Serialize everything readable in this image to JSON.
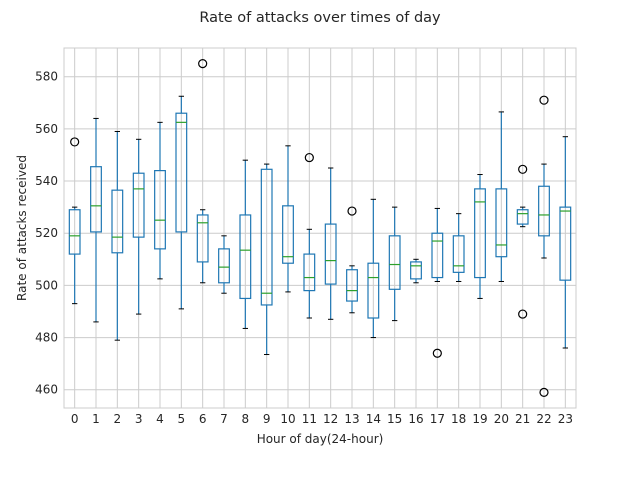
{
  "chart_data": {
    "type": "boxplot",
    "title": "Rate of attacks over times of day",
    "xlabel": "Hour of day(24-hour)",
    "ylabel": "Rate of attacks received",
    "ylim": [
      453,
      591
    ],
    "yticks": [
      460,
      480,
      500,
      520,
      540,
      560,
      580
    ],
    "grid": true,
    "colors": {
      "box": "#1f77b4",
      "median": "#2ca02c",
      "flier": "#000000",
      "grid": "#cccccc",
      "frame": "#cccccc"
    },
    "categories": [
      "0",
      "1",
      "2",
      "3",
      "4",
      "5",
      "6",
      "7",
      "8",
      "9",
      "10",
      "11",
      "12",
      "13",
      "14",
      "15",
      "16",
      "17",
      "18",
      "19",
      "20",
      "21",
      "22",
      "23"
    ],
    "boxes": [
      {
        "label": "0",
        "whislo": 493,
        "q1": 512,
        "med": 519,
        "q3": 529,
        "whishi": 530,
        "fliers": [
          555
        ]
      },
      {
        "label": "1",
        "whislo": 486,
        "q1": 520.5,
        "med": 530.5,
        "q3": 545.5,
        "whishi": 564,
        "fliers": []
      },
      {
        "label": "2",
        "whislo": 479,
        "q1": 512.5,
        "med": 518.5,
        "q3": 536.5,
        "whishi": 559,
        "fliers": []
      },
      {
        "label": "3",
        "whislo": 489,
        "q1": 518.5,
        "med": 537,
        "q3": 543,
        "whishi": 556,
        "fliers": []
      },
      {
        "label": "4",
        "whislo": 502.5,
        "q1": 514,
        "med": 525,
        "q3": 544,
        "whishi": 562.5,
        "fliers": []
      },
      {
        "label": "5",
        "whislo": 491,
        "q1": 520.5,
        "med": 562.5,
        "q3": 566,
        "whishi": 572.5,
        "fliers": []
      },
      {
        "label": "6",
        "whislo": 501,
        "q1": 509,
        "med": 524,
        "q3": 527,
        "whishi": 529,
        "fliers": [
          585
        ]
      },
      {
        "label": "7",
        "whislo": 497,
        "q1": 501,
        "med": 507,
        "q3": 514,
        "whishi": 519,
        "fliers": []
      },
      {
        "label": "8",
        "whislo": 483.5,
        "q1": 495,
        "med": 513.5,
        "q3": 527,
        "whishi": 548,
        "fliers": []
      },
      {
        "label": "9",
        "whislo": 473.5,
        "q1": 492.5,
        "med": 497,
        "q3": 544.5,
        "whishi": 546.5,
        "fliers": []
      },
      {
        "label": "10",
        "whislo": 497.5,
        "q1": 508.5,
        "med": 511,
        "q3": 530.5,
        "whishi": 553.5,
        "fliers": []
      },
      {
        "label": "11",
        "whislo": 487.5,
        "q1": 498,
        "med": 503,
        "q3": 512,
        "whishi": 521.5,
        "fliers": [
          549
        ]
      },
      {
        "label": "12",
        "whislo": 487,
        "q1": 500.5,
        "med": 509.5,
        "q3": 523.5,
        "whishi": 545,
        "fliers": []
      },
      {
        "label": "13",
        "whislo": 489.5,
        "q1": 494,
        "med": 498,
        "q3": 506,
        "whishi": 507.5,
        "fliers": [
          528.5
        ]
      },
      {
        "label": "14",
        "whislo": 480,
        "q1": 487.5,
        "med": 503,
        "q3": 508.5,
        "whishi": 533,
        "fliers": []
      },
      {
        "label": "15",
        "whislo": 486.5,
        "q1": 498.5,
        "med": 508,
        "q3": 519,
        "whishi": 530,
        "fliers": []
      },
      {
        "label": "16",
        "whislo": 501,
        "q1": 502.5,
        "med": 507.5,
        "q3": 509,
        "whishi": 510,
        "fliers": []
      },
      {
        "label": "17",
        "whislo": 501.5,
        "q1": 503,
        "med": 517,
        "q3": 520,
        "whishi": 529.5,
        "fliers": [
          474
        ]
      },
      {
        "label": "18",
        "whislo": 501.5,
        "q1": 505,
        "med": 507.5,
        "q3": 519,
        "whishi": 527.5,
        "fliers": []
      },
      {
        "label": "19",
        "whislo": 495,
        "q1": 503,
        "med": 532,
        "q3": 537,
        "whishi": 542.5,
        "fliers": []
      },
      {
        "label": "20",
        "whislo": 501.5,
        "q1": 511,
        "med": 515.5,
        "q3": 537,
        "whishi": 566.5,
        "fliers": []
      },
      {
        "label": "21",
        "whislo": 522.5,
        "q1": 523.5,
        "med": 527.5,
        "q3": 529,
        "whishi": 530,
        "fliers": [
          544.5,
          489
        ]
      },
      {
        "label": "22",
        "whislo": 510.5,
        "q1": 519,
        "med": 527,
        "q3": 538,
        "whishi": 546.5,
        "fliers": [
          571,
          459
        ]
      },
      {
        "label": "23",
        "whislo": 476,
        "q1": 502,
        "med": 528.5,
        "q3": 530,
        "whishi": 557,
        "fliers": []
      }
    ]
  }
}
